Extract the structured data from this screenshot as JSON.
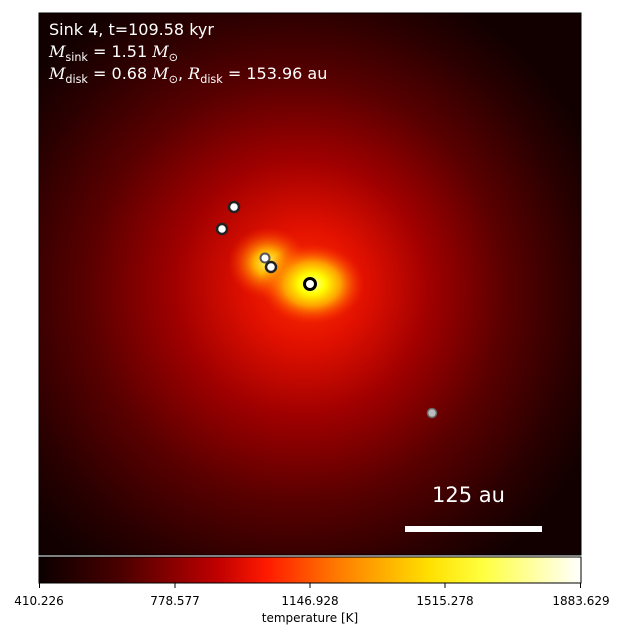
{
  "panel": {
    "sink_label": "Sink 4, t=109.58 kyr",
    "m_sink_symbol": "M",
    "m_sink_sub": "sink",
    "m_sink_value": "= 1.51",
    "m_sink_unit_symbol": "M",
    "m_sink_unit_sub": "⊙",
    "m_disk_symbol": "M",
    "m_disk_sub": "disk",
    "m_disk_value": "= 0.68",
    "m_disk_unit_symbol": "M",
    "m_disk_unit_sub": "⊙",
    "r_disk_symbol": "R",
    "r_disk_sub": "disk",
    "r_disk_value": "= 153.96 au",
    "scale_bar_label": "125 au"
  },
  "colorbar": {
    "label": "temperature [K]",
    "ticks": [
      "410.226",
      "778.577",
      "1146.928",
      "1515.278",
      "1883.629"
    ],
    "min": 410.226,
    "max": 1883.629
  },
  "colors": {
    "background": "#000000",
    "hot": "#ffff00",
    "warm": "#ff2000",
    "cool": "#3a0000",
    "sink_fill": "#ffffff",
    "sink_stroke": "#222222"
  },
  "sinks": [
    {
      "name": "sink-upper-left-1"
    },
    {
      "name": "sink-upper-left-2"
    },
    {
      "name": "sink-center-left-1"
    },
    {
      "name": "sink-center-left-2"
    },
    {
      "name": "sink-primary"
    },
    {
      "name": "sink-lower-right"
    }
  ]
}
